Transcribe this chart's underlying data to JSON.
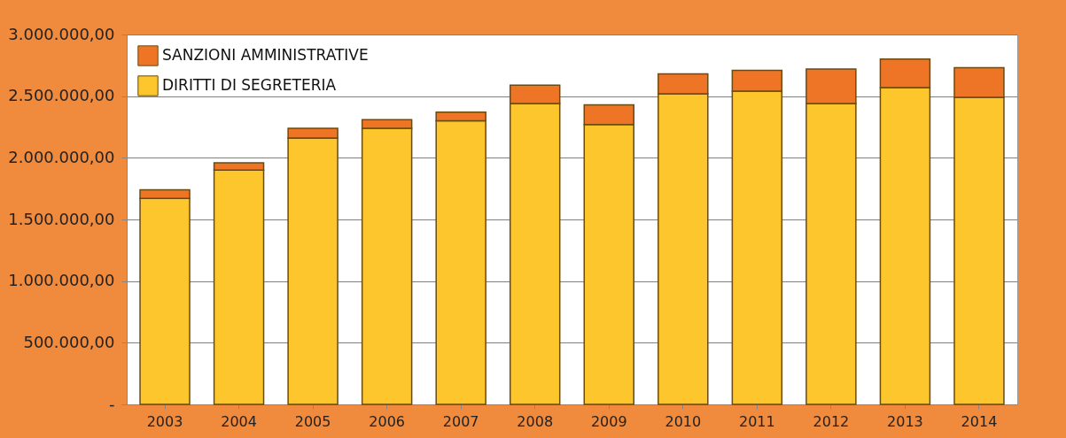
{
  "chart_data": {
    "type": "bar",
    "stacked": true,
    "categories": [
      "2003",
      "2004",
      "2005",
      "2006",
      "2007",
      "2008",
      "2009",
      "2010",
      "2011",
      "2012",
      "2013",
      "2014"
    ],
    "series": [
      {
        "name": "DIRITTI DI SEGRETERIA",
        "color": "#fcc62c",
        "values": [
          1670000,
          1900000,
          2160000,
          2240000,
          2300000,
          2440000,
          2270000,
          2520000,
          2540000,
          2440000,
          2570000,
          2490000
        ]
      },
      {
        "name": "SANZIONI AMMINISTRATIVE",
        "color": "#ee7526",
        "values": [
          70000,
          60000,
          80000,
          70000,
          70000,
          150000,
          160000,
          160000,
          170000,
          280000,
          230000,
          240000
        ]
      }
    ],
    "ylim": [
      0,
      3000000
    ],
    "yticks": [
      {
        "value": 0,
        "label": "-"
      },
      {
        "value": 500000,
        "label": "500.000,00"
      },
      {
        "value": 1000000,
        "label": "1.000.000,00"
      },
      {
        "value": 1500000,
        "label": "1.500.000,00"
      },
      {
        "value": 2000000,
        "label": "2.000.000,00"
      },
      {
        "value": 2500000,
        "label": "2.500.000,00"
      },
      {
        "value": 3000000,
        "label": "3.000.000,00"
      }
    ],
    "grid": "y",
    "legend": "top left"
  }
}
